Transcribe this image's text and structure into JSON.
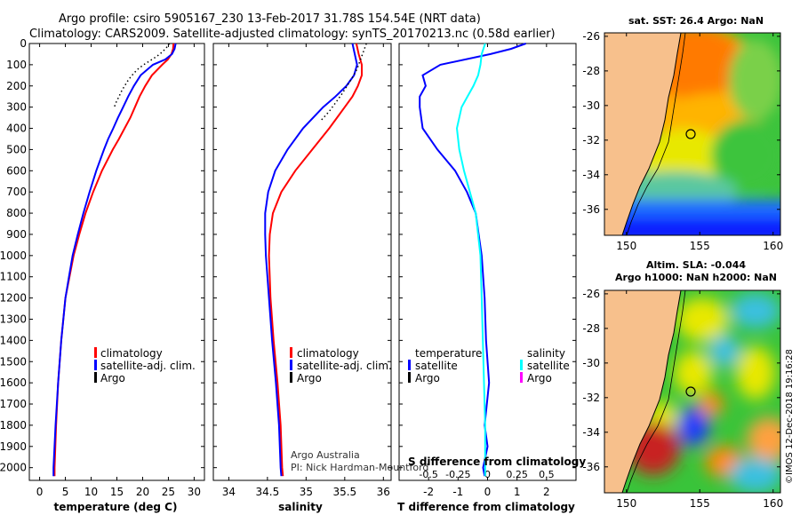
{
  "titles": {
    "line1": "Argo profile: csiro 5905167_230 13-Feb-2017 31.78S 154.54E (NRT data)",
    "line2": "Climatology: CARS2009. Satellite-adjusted climatology: synTS_20170213.nc (0.58d earlier)"
  },
  "colors": {
    "climatology": "#ff0000",
    "satellite": "#0000ff",
    "argo": "#000000",
    "salinity_sat": "#00ffff",
    "salinity_argo": "#ff00ff",
    "land": "#f7c08c"
  },
  "credits": {
    "line1": "Argo Australia",
    "line2": "PI: Nick Hardman-Mountford"
  },
  "watermark": "©IMOS 12-Dec-2018 19:16:28",
  "chart_data": [
    {
      "type": "line",
      "id": "temperature",
      "xlabel": "temperature (deg C)",
      "ylabel": "",
      "xlim": [
        -2,
        32
      ],
      "ylim": [
        2060,
        0
      ],
      "xticks": [
        "0",
        "5",
        "10",
        "15",
        "20",
        "25",
        "30"
      ],
      "xtick_values": [
        0,
        5,
        10,
        15,
        20,
        25,
        30
      ],
      "yticks": [
        "0",
        "100",
        "200",
        "300",
        "400",
        "500",
        "600",
        "700",
        "800",
        "900",
        "1000",
        "1100",
        "1200",
        "1300",
        "1400",
        "1500",
        "1600",
        "1700",
        "1800",
        "1900",
        "2000"
      ],
      "ytick_values": [
        0,
        100,
        200,
        300,
        400,
        500,
        600,
        700,
        800,
        900,
        1000,
        1100,
        1200,
        1300,
        1400,
        1500,
        1600,
        1700,
        1800,
        1900,
        2000
      ],
      "legend": {
        "position": "center-right",
        "entries": [
          "climatology",
          "satellite-adj. clim.",
          "Argo"
        ]
      },
      "series": [
        {
          "name": "climatology",
          "color": "#ff0000",
          "depth": [
            0,
            25,
            50,
            75,
            100,
            150,
            200,
            250,
            300,
            350,
            400,
            450,
            500,
            600,
            700,
            800,
            900,
            1000,
            1100,
            1200,
            1400,
            1600,
            1800,
            2000,
            2040
          ],
          "values": [
            26.0,
            25.9,
            25.6,
            24.9,
            23.8,
            21.8,
            20.5,
            19.4,
            18.5,
            17.6,
            16.5,
            15.4,
            14.2,
            12.1,
            10.4,
            8.9,
            7.7,
            6.6,
            5.8,
            5.0,
            4.2,
            3.6,
            3.2,
            2.9,
            2.9
          ]
        },
        {
          "name": "satellite-adj. clim.",
          "color": "#0000ff",
          "depth": [
            0,
            25,
            50,
            75,
            100,
            150,
            200,
            250,
            300,
            350,
            400,
            450,
            500,
            600,
            700,
            800,
            900,
            1000,
            1100,
            1200,
            1400,
            1600,
            1800,
            2000,
            2040
          ],
          "values": [
            26.4,
            26.2,
            25.7,
            24.4,
            22.0,
            19.6,
            18.3,
            17.2,
            16.2,
            15.2,
            14.3,
            13.3,
            12.5,
            11.0,
            9.7,
            8.5,
            7.4,
            6.4,
            5.7,
            5.0,
            4.2,
            3.6,
            3.1,
            2.7,
            2.7
          ]
        },
        {
          "name": "Argo",
          "color": "#000000",
          "depth": [
            0,
            20,
            40,
            60,
            80,
            100,
            120,
            140,
            160,
            180,
            200,
            220,
            240,
            260,
            280,
            300
          ],
          "values": [
            25.2,
            24.6,
            23.8,
            22.8,
            21.5,
            20.2,
            19.1,
            18.3,
            17.6,
            17.0,
            16.5,
            16.0,
            15.6,
            15.2,
            14.8,
            14.5
          ]
        }
      ]
    },
    {
      "type": "line",
      "id": "salinity",
      "xlabel": "salinity",
      "xlim": [
        33.8,
        36.1
      ],
      "ylim": [
        2060,
        0
      ],
      "xticks": [
        "34",
        "34.5",
        "35",
        "35.5",
        "36"
      ],
      "xtick_values": [
        34,
        34.5,
        35,
        35.5,
        36
      ],
      "legend": {
        "position": "center-right",
        "entries": [
          "climatology",
          "satellite-adj. clim.",
          "Argo"
        ]
      },
      "series": [
        {
          "name": "climatology",
          "color": "#ff0000",
          "depth": [
            0,
            50,
            100,
            150,
            200,
            250,
            300,
            400,
            500,
            600,
            700,
            800,
            900,
            1000,
            1200,
            1400,
            1600,
            1800,
            2000,
            2040
          ],
          "values": [
            35.65,
            35.68,
            35.72,
            35.72,
            35.67,
            35.6,
            35.5,
            35.3,
            35.08,
            34.86,
            34.68,
            34.57,
            34.53,
            34.52,
            34.54,
            34.58,
            34.63,
            34.67,
            34.69,
            34.7
          ]
        },
        {
          "name": "satellite-adj. clim.",
          "color": "#0000ff",
          "depth": [
            0,
            50,
            100,
            150,
            200,
            250,
            300,
            400,
            500,
            600,
            700,
            800,
            900,
            1000,
            1200,
            1400,
            1600,
            1800,
            2000,
            2040
          ],
          "values": [
            35.6,
            35.63,
            35.66,
            35.62,
            35.52,
            35.38,
            35.22,
            34.96,
            34.76,
            34.6,
            34.51,
            34.47,
            34.47,
            34.48,
            34.52,
            34.56,
            34.61,
            34.65,
            34.67,
            34.68
          ]
        },
        {
          "name": "Argo",
          "color": "#000000",
          "depth": [
            0,
            40,
            80,
            120,
            160,
            200,
            240,
            280,
            320,
            360
          ],
          "values": [
            35.78,
            35.74,
            35.7,
            35.66,
            35.6,
            35.53,
            35.46,
            35.38,
            35.3,
            35.2
          ]
        }
      ]
    },
    {
      "type": "line",
      "id": "difference",
      "xlabel": "T difference from climatology",
      "xlabel_top": "S difference from climatology",
      "xlim": [
        -3.0,
        3.0
      ],
      "ylim": [
        2060,
        0
      ],
      "xticks": [
        "-2",
        "-1",
        "0",
        "1",
        "2"
      ],
      "xtick_values": [
        -2,
        -1,
        0,
        1,
        2
      ],
      "xticks_top": [
        "-0.5",
        "-0.25",
        "0",
        "0.25",
        "0.5"
      ],
      "xtick_values_top": [
        -0.5,
        -0.25,
        0,
        0.25,
        0.5
      ],
      "legend": {
        "position": "center",
        "temperature_title": "temperature",
        "salinity_title": "salinity",
        "temperature_entries": [
          "satellite",
          "Argo"
        ],
        "salinity_entries": [
          "satellite",
          "Argo"
        ]
      },
      "series": [
        {
          "name": "T satellite",
          "color": "#0000ff",
          "depth": [
            0,
            25,
            50,
            100,
            150,
            200,
            250,
            300,
            400,
            500,
            600,
            700,
            800,
            900,
            1000,
            1200,
            1400,
            1600,
            1800,
            1900,
            2000,
            2040
          ],
          "values": [
            1.3,
            0.8,
            0.1,
            -1.6,
            -2.2,
            -2.1,
            -2.3,
            -2.3,
            -2.2,
            -1.7,
            -1.1,
            -0.7,
            -0.4,
            -0.3,
            -0.2,
            -0.1,
            -0.05,
            0.05,
            -0.1,
            0.0,
            -0.15,
            -0.1
          ]
        },
        {
          "name": "S satellite",
          "color": "#00ffff",
          "depth": [
            0,
            50,
            100,
            150,
            200,
            250,
            300,
            400,
            500,
            600,
            700,
            800,
            1000,
            1200,
            1400,
            1600,
            1800,
            2000,
            2040
          ],
          "values": [
            -0.02,
            -0.05,
            -0.06,
            -0.08,
            -0.12,
            -0.17,
            -0.22,
            -0.26,
            -0.24,
            -0.2,
            -0.15,
            -0.1,
            -0.06,
            -0.05,
            -0.04,
            -0.03,
            -0.02,
            -0.02,
            -0.02
          ]
        }
      ]
    },
    {
      "type": "heatmap",
      "id": "sst_map",
      "title": "sat. SST: 26.4 Argo: NaN",
      "xlim": [
        148.5,
        160.5
      ],
      "ylim": [
        -37.5,
        -25.8
      ],
      "xticks": [
        "150",
        "155",
        "160"
      ],
      "xtick_values": [
        150,
        155,
        160
      ],
      "yticks": [
        "-26",
        "-28",
        "-30",
        "-32",
        "-34",
        "-36"
      ],
      "ytick_values": [
        -26,
        -28,
        -30,
        -32,
        -34,
        -36
      ],
      "argo_location": {
        "lon": 154.54,
        "lat": -31.78
      }
    },
    {
      "type": "heatmap",
      "id": "sla_map",
      "title_line1": "Altim. SLA: -0.044",
      "title_line2": "Argo h1000: NaN h2000: NaN",
      "xlim": [
        148.5,
        160.5
      ],
      "ylim": [
        -37.5,
        -25.8
      ],
      "xticks": [
        "150",
        "155",
        "160"
      ],
      "xtick_values": [
        150,
        155,
        160
      ],
      "yticks": [
        "-26",
        "-28",
        "-30",
        "-32",
        "-34",
        "-36"
      ],
      "ytick_values": [
        -26,
        -28,
        -30,
        -32,
        -34,
        -36
      ],
      "argo_location": {
        "lon": 154.54,
        "lat": -31.78
      }
    }
  ]
}
